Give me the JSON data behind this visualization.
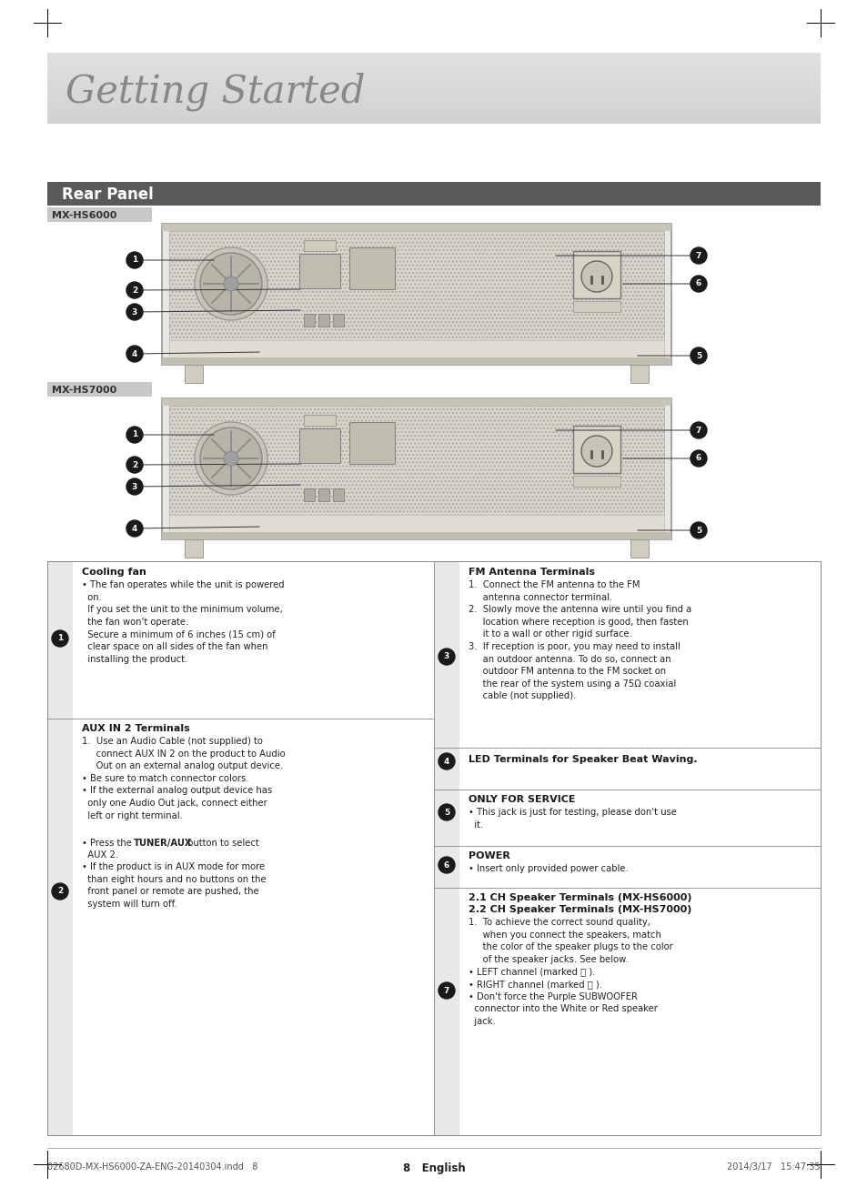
{
  "bg_color": "#ffffff",
  "title_text": "Getting Started",
  "title_fontsize": 30,
  "header_bg": "#595959",
  "header_text": "Rear Panel",
  "header_text_color": "#ffffff",
  "header_fontsize": 12,
  "model1_label": "MX-HS6000",
  "model2_label": "MX-HS7000",
  "model_label_bg": "#cccccc",
  "body_fontsize": 7.2,
  "bold_fontsize": 8.0,
  "footer_text_left": "02680D-MX-HS6000-ZA-ENG-20140304.indd   8",
  "footer_text_center": "8   English",
  "footer_text_right": "2014/3/17   15:47:35",
  "footer_fontsize": 7
}
